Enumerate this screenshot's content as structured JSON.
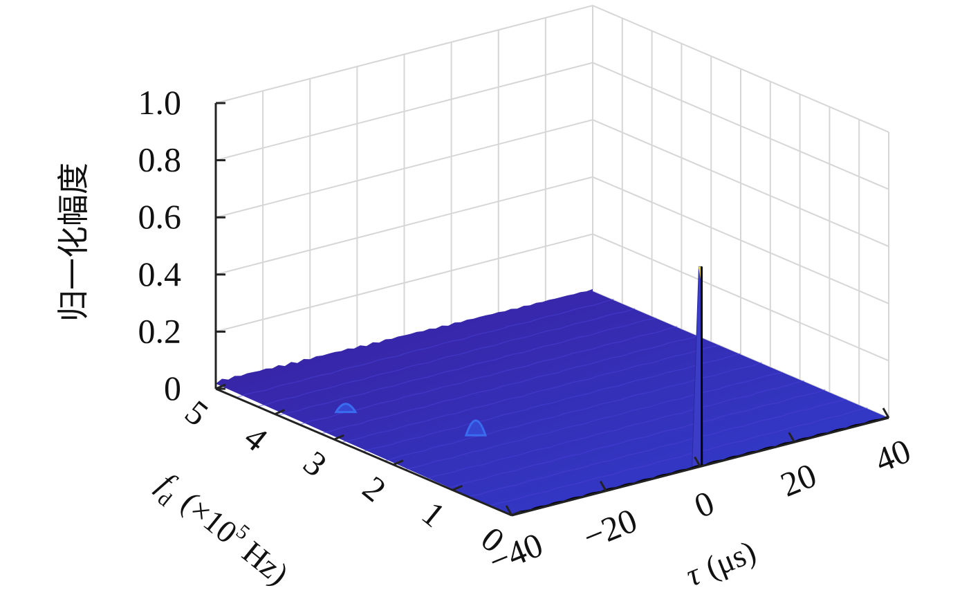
{
  "chart_data": {
    "type": "surface",
    "title": "",
    "zlabel": "归一化幅度",
    "zlim": [
      0,
      1
    ],
    "z_ticks": [
      "0",
      "0.2",
      "0.4",
      "0.6",
      "0.8",
      "1.0"
    ],
    "x_axis": {
      "symbol": "τ",
      "unit": "(μs)",
      "ticks": [
        "−40",
        "−20",
        "0",
        "20",
        "40"
      ],
      "lim": [
        -40,
        40
      ]
    },
    "y_axis": {
      "symbol": "f",
      "subscript": "d",
      "unit_prefix": "(×10",
      "unit_exponent": "5",
      "unit_suffix": " Hz)",
      "ticks": [
        "0",
        "1",
        "2",
        "3",
        "4",
        "5"
      ],
      "lim": [
        0,
        5
      ]
    },
    "grid": true,
    "colormap": [
      "#3a1f9e",
      "#2f3fd0",
      "#3a6cf0",
      "#f7e23a"
    ],
    "peaks": [
      {
        "tau": 0,
        "fd": 0,
        "amplitude": 0.7
      },
      {
        "tau": -20,
        "fd": 2.2,
        "amplitude": 0.09
      },
      {
        "tau": -30,
        "fd": 3.6,
        "amplitude": 0.05
      }
    ],
    "noise_floor": 0.03
  }
}
